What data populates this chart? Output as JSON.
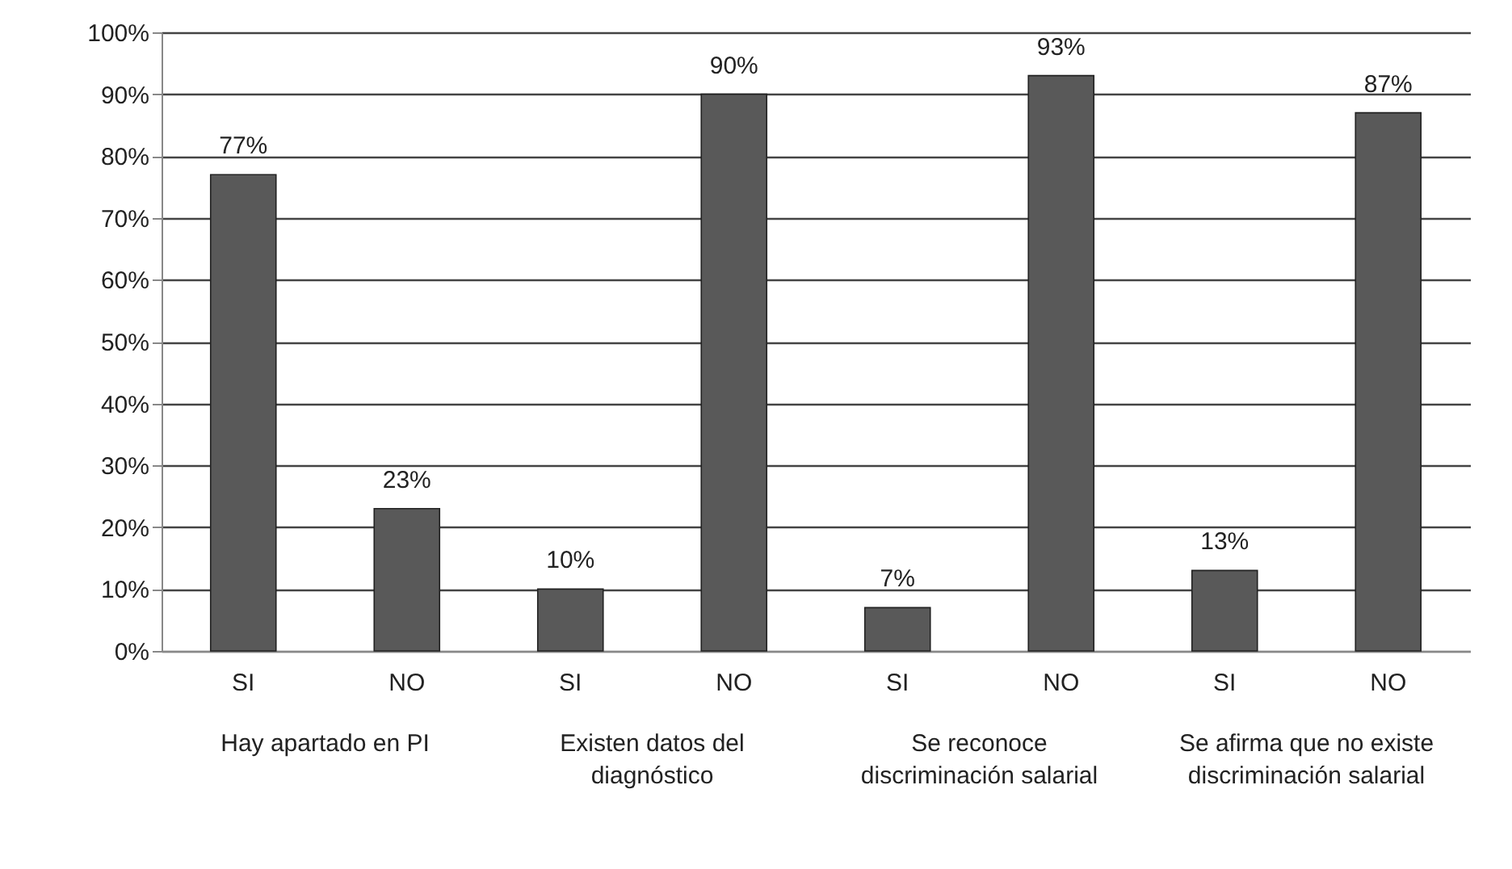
{
  "chart_data": {
    "type": "bar",
    "categories": [
      "SI",
      "NO",
      "SI",
      "NO",
      "SI",
      "NO",
      "SI",
      "NO"
    ],
    "values": [
      77,
      23,
      10,
      90,
      7,
      93,
      13,
      87
    ],
    "value_labels": [
      "77%",
      "23%",
      "10%",
      "90%",
      "7%",
      "93%",
      "13%",
      "87%"
    ],
    "color": "#595959",
    "ylim": [
      0,
      100
    ],
    "yticks": [
      {
        "value": 0,
        "label": "0%"
      },
      {
        "value": 10,
        "label": "10%"
      },
      {
        "value": 20,
        "label": "20%"
      },
      {
        "value": 30,
        "label": "30%"
      },
      {
        "value": 40,
        "label": "40%"
      },
      {
        "value": 50,
        "label": "50%"
      },
      {
        "value": 60,
        "label": "60%"
      },
      {
        "value": 70,
        "label": "70%"
      },
      {
        "value": 80,
        "label": "80%"
      },
      {
        "value": 90,
        "label": "90%"
      },
      {
        "value": 100,
        "label": "100%"
      }
    ],
    "grid": "y",
    "annotations": [
      "Hay apartado en PI",
      "Existen datos del diagnóstico",
      "Se reconoce discriminación salarial",
      "Se afirma que no existe discriminación salarial"
    ]
  }
}
